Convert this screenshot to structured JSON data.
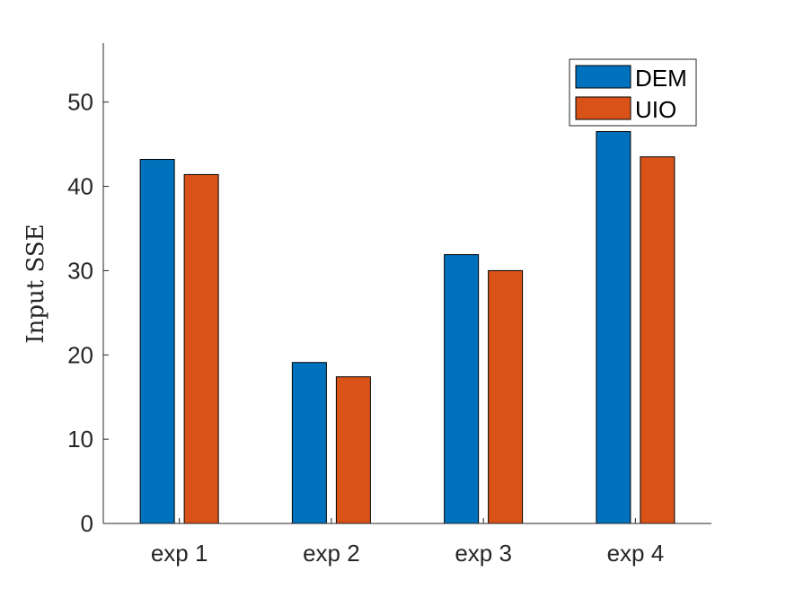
{
  "chart_data": {
    "type": "bar",
    "categories": [
      "exp 1",
      "exp 2",
      "exp 3",
      "exp 4"
    ],
    "series": [
      {
        "name": "DEM",
        "color": "#0072BD",
        "values": [
          43.2,
          19.1,
          31.9,
          46.5
        ]
      },
      {
        "name": "UIO",
        "color": "#D95319",
        "values": [
          41.4,
          17.4,
          30.0,
          43.5
        ]
      }
    ],
    "title": "",
    "xlabel": "",
    "ylabel": "Input SSE",
    "ylim": [
      0,
      57
    ],
    "yticks": [
      0,
      10,
      20,
      30,
      40,
      50
    ],
    "grid": false,
    "legend_position": "top-right"
  }
}
